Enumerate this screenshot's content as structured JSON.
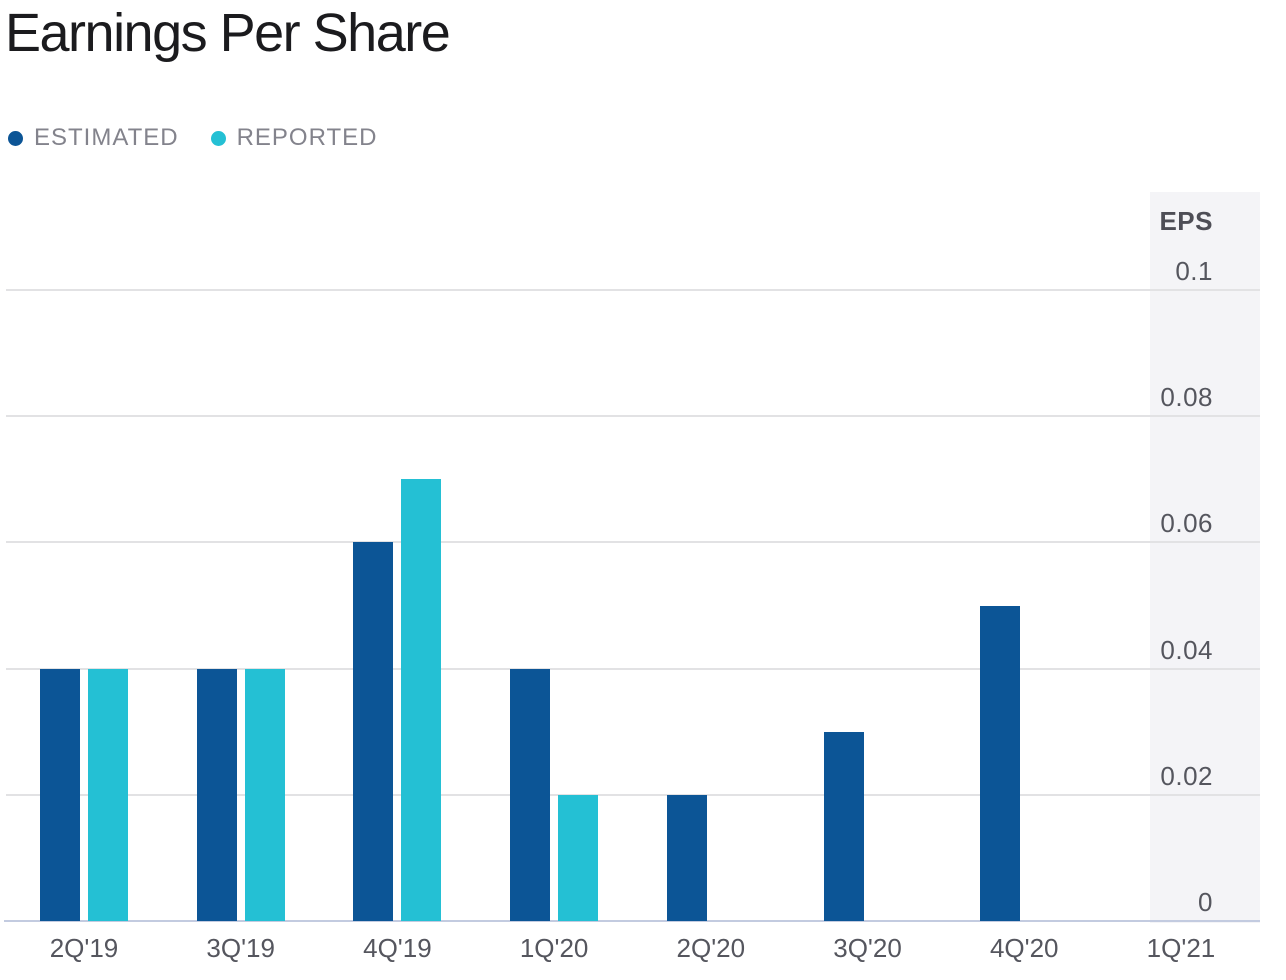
{
  "title": "Earnings Per Share",
  "legend": {
    "items": [
      {
        "label": "ESTIMATED",
        "color": "#0c5596"
      },
      {
        "label": "REPORTED",
        "color": "#24c0d4"
      }
    ]
  },
  "axis": {
    "y_title": "EPS",
    "y_tick_labels": [
      "0",
      "0.02",
      "0.04",
      "0.06",
      "0.08",
      "0.1"
    ],
    "x_labels": [
      "2Q'19",
      "3Q'19",
      "4Q'19",
      "1Q'20",
      "2Q'20",
      "3Q'20",
      "4Q'20",
      "1Q'21"
    ]
  },
  "chart_data": {
    "type": "bar",
    "title": "Earnings Per Share",
    "categories": [
      "2Q'19",
      "3Q'19",
      "4Q'19",
      "1Q'20",
      "2Q'20",
      "3Q'20",
      "4Q'20",
      "1Q'21"
    ],
    "series": [
      {
        "name": "ESTIMATED",
        "color": "#0c5596",
        "values": [
          0.04,
          0.04,
          0.06,
          0.04,
          0.02,
          0.03,
          0.05,
          null
        ]
      },
      {
        "name": "REPORTED",
        "color": "#24c0d4",
        "values": [
          0.04,
          0.04,
          0.07,
          0.02,
          null,
          null,
          null,
          null
        ]
      }
    ],
    "xlabel": "",
    "ylabel": "EPS",
    "ylim": [
      0,
      0.1
    ],
    "yticks": [
      0,
      0.02,
      0.04,
      0.06,
      0.08,
      0.1
    ],
    "grid": true,
    "legend_position": "top-left",
    "highlighted_category": "1Q'21"
  },
  "colors": {
    "estimated": "#0c5596",
    "reported": "#24c0d4",
    "title_text": "#1b1b1e",
    "legend_text": "#83838c",
    "axis_text": "#55565e",
    "gridline": "#e2e2e4",
    "axis_line": "#c3cbe0",
    "highlight_column_bg": "#f4f4f7",
    "background": "#ffffff"
  }
}
